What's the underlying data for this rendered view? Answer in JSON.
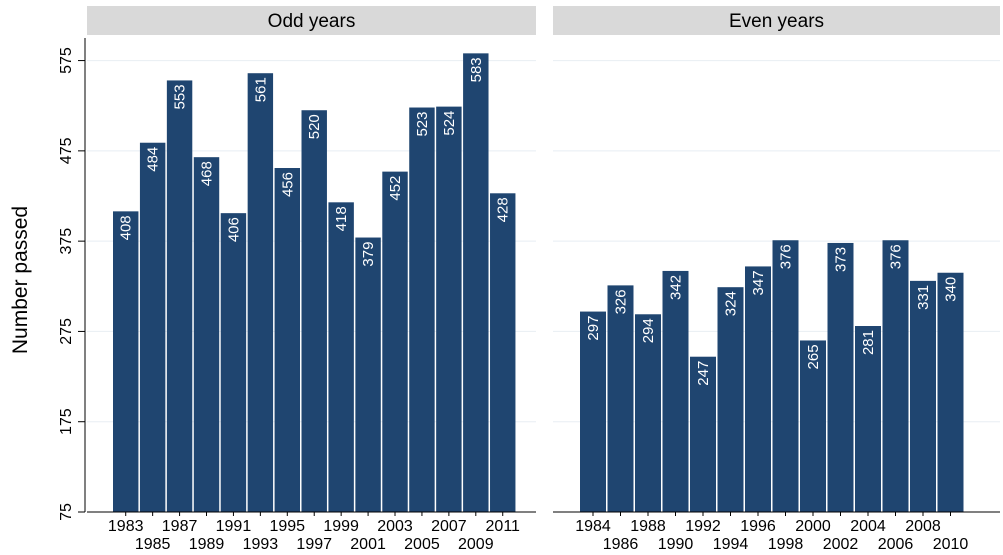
{
  "chart_data": {
    "type": "bar",
    "ylabel": "Number passed",
    "ylim": [
      75,
      600
    ],
    "yticks": [
      75,
      175,
      275,
      375,
      475,
      575
    ],
    "grid": true,
    "bar_color": "#1f4570",
    "strip_color": "#d9d9d9",
    "panel_background": "#ffffff",
    "grid_color": "#e8eef3",
    "panels": [
      {
        "title": "Odd years",
        "categories": [
          "1983",
          "1985",
          "1987",
          "1989",
          "1991",
          "1993",
          "1995",
          "1997",
          "1999",
          "2001",
          "2003",
          "2005",
          "2007",
          "2009",
          "2011"
        ],
        "values": [
          408,
          484,
          553,
          468,
          406,
          561,
          456,
          520,
          418,
          379,
          452,
          523,
          524,
          583,
          428
        ]
      },
      {
        "title": "Even years",
        "categories": [
          "1984",
          "1986",
          "1988",
          "1990",
          "1992",
          "1994",
          "1996",
          "1998",
          "2000",
          "2002",
          "2004",
          "2006",
          "2008",
          "2010"
        ],
        "values": [
          297,
          326,
          294,
          342,
          247,
          324,
          347,
          376,
          265,
          373,
          281,
          376,
          331,
          340
        ]
      }
    ]
  }
}
